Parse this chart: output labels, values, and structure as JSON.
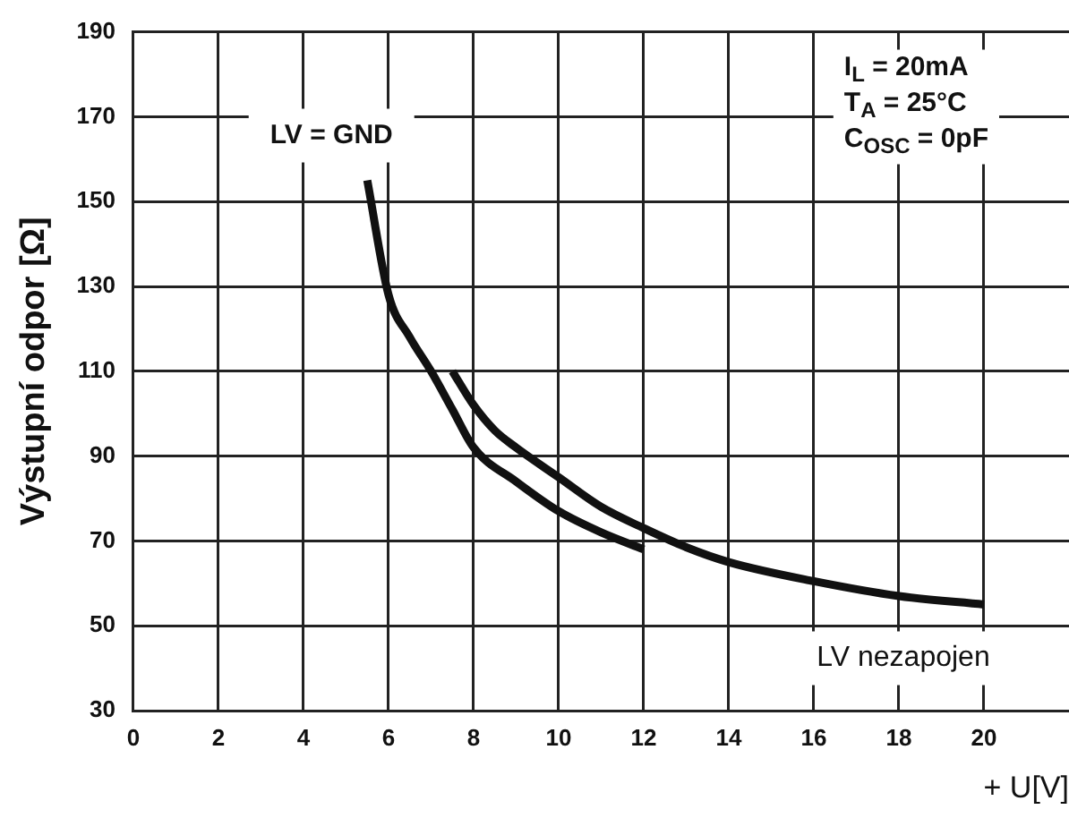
{
  "chart_data": {
    "type": "line",
    "xlabel": "+ U[V]",
    "ylabel": "Výstupní odpor [Ω]",
    "xlim": [
      0,
      22
    ],
    "xticks": [
      0,
      2,
      4,
      6,
      8,
      10,
      12,
      14,
      16,
      18,
      20
    ],
    "ylim": [
      30,
      190
    ],
    "yticks": [
      30,
      50,
      70,
      90,
      110,
      130,
      150,
      170,
      190
    ],
    "grid": true,
    "legend": false,
    "marker": "none",
    "line_style": "solid",
    "annotations": [
      "I$_{L}$ = 20mA",
      "T$_{A}$ = 25°C",
      "C$_{OSC}$ = 0pF"
    ],
    "series": [
      {
        "name": "LV = GND",
        "color": "#111111",
        "x": [
          5.5,
          6,
          6.5,
          7,
          7.5,
          8,
          9,
          10,
          11,
          12
        ],
        "values": [
          155,
          128,
          118,
          110,
          101,
          92,
          84,
          77,
          72,
          68
        ]
      },
      {
        "name": "LV nezapojen",
        "color": "#111111",
        "x": [
          7.5,
          8,
          8.5,
          9,
          10,
          11,
          12,
          13,
          14,
          16,
          18,
          20
        ],
        "values": [
          110,
          102,
          96,
          92,
          85,
          78,
          73,
          68.5,
          65,
          60.5,
          57,
          55
        ]
      }
    ]
  }
}
